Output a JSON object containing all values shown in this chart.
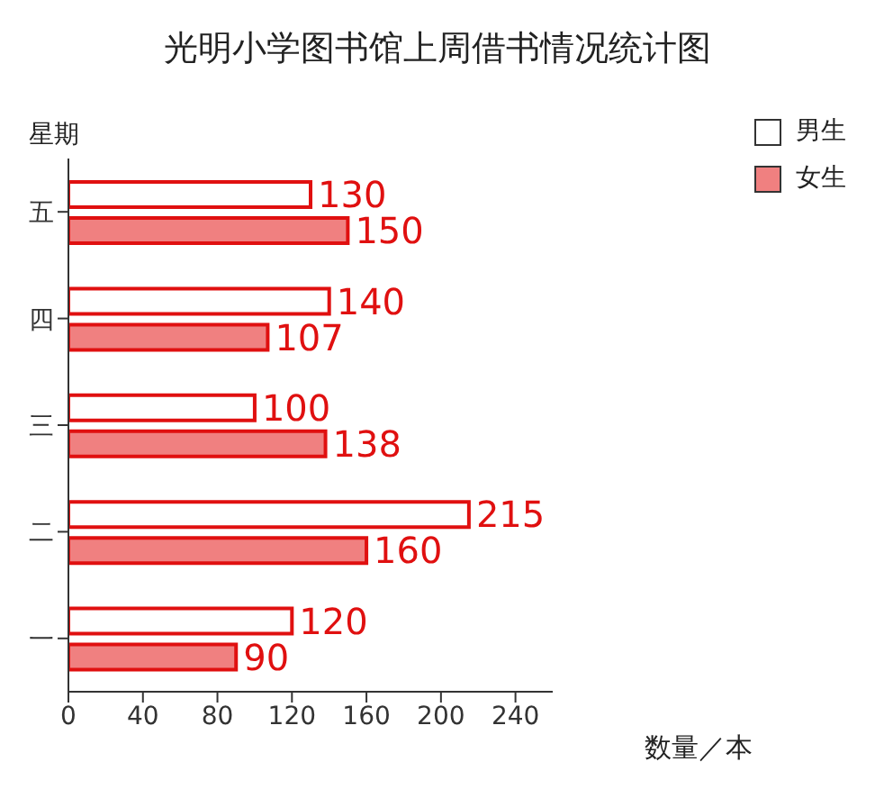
{
  "chart_data": {
    "type": "bar",
    "orientation": "horizontal",
    "title": "光明小学图书馆上周借书情况统计图",
    "ylabel": "星期",
    "xlabel": "数量／本",
    "categories": [
      "五",
      "四",
      "三",
      "二",
      "一"
    ],
    "series": [
      {
        "name": "男生",
        "color": "#ffffff",
        "values": [
          130,
          140,
          100,
          215,
          120
        ]
      },
      {
        "name": "女生",
        "color": "#f08080",
        "values": [
          150,
          107,
          138,
          160,
          90
        ]
      }
    ],
    "xlim": [
      0,
      260
    ],
    "xticks": [
      0,
      40,
      80,
      120,
      160,
      200,
      240
    ],
    "data_labels": true,
    "legend": "top right",
    "grid": false
  }
}
